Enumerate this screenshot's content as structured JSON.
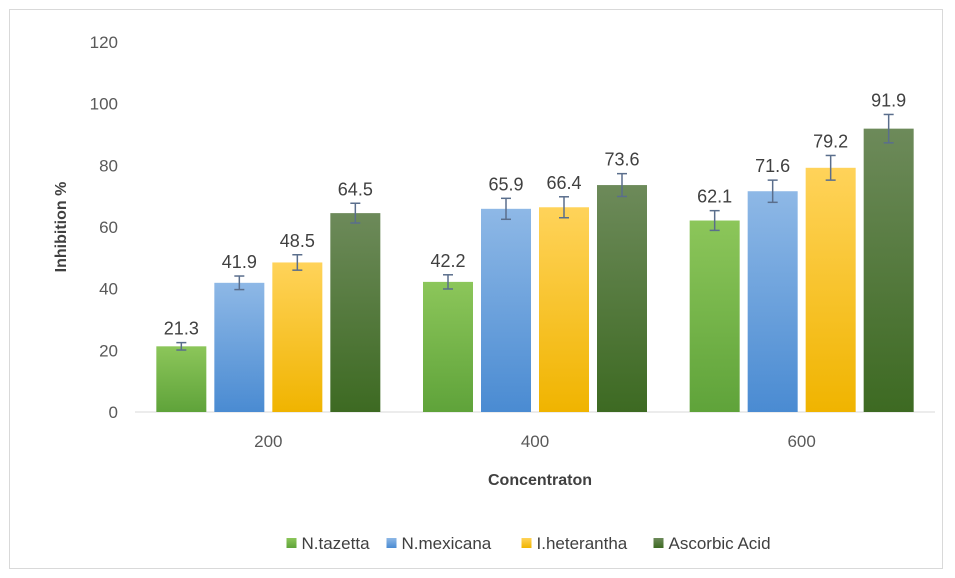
{
  "chart_data": {
    "type": "bar",
    "title": "",
    "xlabel": "Concentraton",
    "ylabel": "Inhibition %",
    "categories": [
      "200",
      "400",
      "600"
    ],
    "ylim": [
      0,
      120
    ],
    "yticks": [
      "0",
      "20",
      "40",
      "60",
      "80",
      "100",
      "120"
    ],
    "grid": false,
    "legend_position": "bottom",
    "series": [
      {
        "name": "N.tazetta",
        "values": [
          21.3,
          42.2,
          62.1
        ],
        "labels": [
          "21.3",
          "42.2",
          "62.1"
        ],
        "errors": [
          1.2,
          2.3,
          3.2
        ],
        "color_top": "#8cc65a",
        "color_bottom": "#5fa33a"
      },
      {
        "name": "N.mexicana",
        "values": [
          41.9,
          65.9,
          71.6
        ],
        "labels": [
          "41.9",
          "65.9",
          "71.6"
        ],
        "errors": [
          2.2,
          3.4,
          3.6
        ],
        "color_top": "#8eb8e6",
        "color_bottom": "#4a8bd2"
      },
      {
        "name": "I.heterantha",
        "values": [
          48.5,
          66.4,
          79.2
        ],
        "labels": [
          "48.5",
          "66.4",
          "79.2"
        ],
        "errors": [
          2.5,
          3.4,
          4.0
        ],
        "color_top": "#ffd35a",
        "color_bottom": "#f0b400"
      },
      {
        "name": "Ascorbic Acid",
        "values": [
          64.5,
          73.6,
          91.9
        ],
        "labels": [
          "64.5",
          "73.6",
          "91.9"
        ],
        "errors": [
          3.2,
          3.7,
          4.6
        ],
        "color_top": "#6d8a5a",
        "color_bottom": "#3d6a22"
      }
    ],
    "error_bar_color": "#5a6e8c"
  }
}
